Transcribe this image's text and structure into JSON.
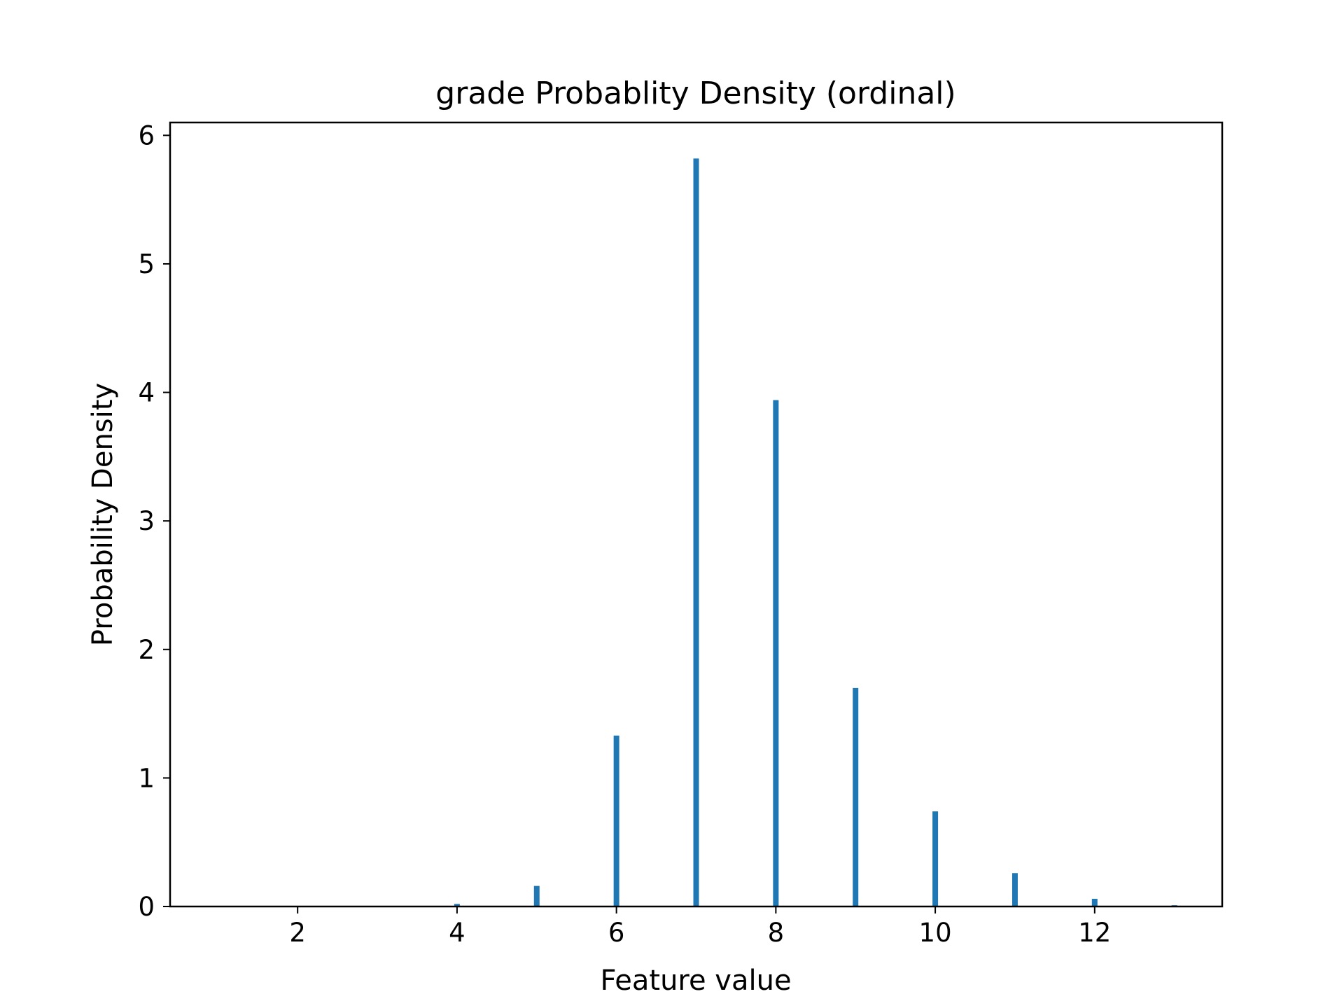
{
  "chart_data": {
    "type": "bar",
    "title": "grade Probablity Density (ordinal)",
    "xlabel": "Feature value",
    "ylabel": "Probability Density",
    "xlim": [
      0.4,
      13.6
    ],
    "ylim": [
      0,
      6.1
    ],
    "xticks": [
      2,
      4,
      6,
      8,
      10,
      12
    ],
    "yticks": [
      0,
      1,
      2,
      3,
      4,
      5,
      6
    ],
    "x": [
      1,
      3,
      4,
      5,
      6,
      7,
      8,
      9,
      10,
      11,
      12,
      13
    ],
    "values": [
      0.0,
      0.001,
      0.02,
      0.16,
      1.33,
      5.82,
      3.94,
      1.7,
      0.74,
      0.26,
      0.06,
      0.01
    ],
    "bar_width": 0.07,
    "bar_color": "#1f77b4",
    "grid": false,
    "legend": "none"
  }
}
